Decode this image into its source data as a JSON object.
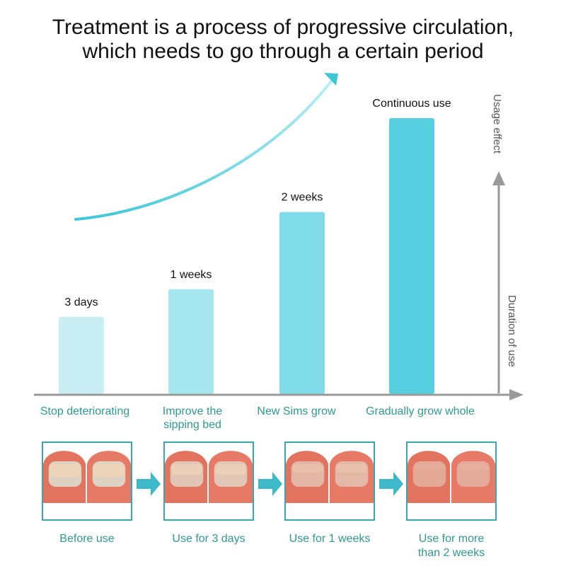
{
  "title": {
    "line1": "Treatment is a process of progressive circulation,",
    "line2": "which needs to go through a certain period"
  },
  "chart_data": {
    "type": "bar",
    "title": "Treatment is a process of progressive circulation, which needs to go through a certain period",
    "xlabel": "Duration of use",
    "ylabel": "Usage effect",
    "categories": [
      "Stop deteriorating",
      "Improve the sipping bed",
      "New Sims grow",
      "Gradually grow whole"
    ],
    "bar_labels": [
      "3 days",
      "1 weeks",
      "2 weeks",
      "Continuous use"
    ],
    "values": [
      28,
      38,
      66,
      100
    ],
    "value_units": "relative effect (%) — no numeric axis shown",
    "ylim": [
      0,
      120
    ],
    "grid": false,
    "legend": "none",
    "bar_colors": [
      "#c9eff4",
      "#a6e6ee",
      "#7fdbe8",
      "#56cfe1"
    ],
    "trend_arrow": "rising curve, upper-left"
  },
  "colors": {
    "accent": "#3fc6d6",
    "axis": "#999999",
    "label_teal": "#2e9a8f",
    "frame": "#3aa7b0"
  },
  "steps": [
    {
      "label": "Before use",
      "severity": 1.0
    },
    {
      "label": "Use for 3 days",
      "severity": 0.75
    },
    {
      "label": "Use for 1 weeks",
      "severity": 0.45
    },
    {
      "label": "Use for more than 2 weeks",
      "severity": 0.15
    }
  ],
  "step_labels": [
    "Before use",
    "Use for 3 days",
    "Use for 1 weeks",
    "Use for more\nthan 2 weeks"
  ]
}
